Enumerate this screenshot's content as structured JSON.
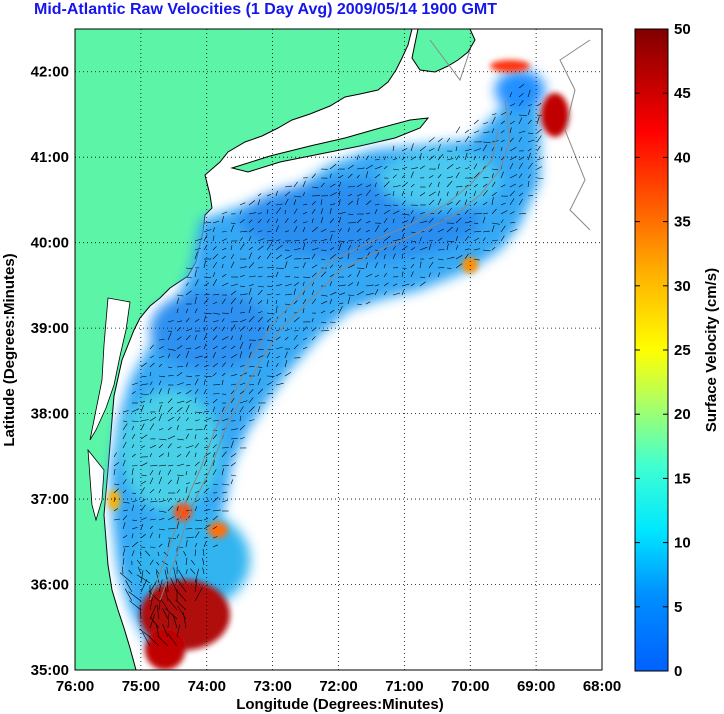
{
  "title": "Mid-Atlantic Raw Velocities (1 Day Avg) 2009/05/14 1900 GMT",
  "map": {
    "xlabel": "Longitude (Degrees:Minutes)",
    "ylabel": "Latitude (Degrees:Minutes)",
    "lon_ticks": [
      "76:00",
      "75:00",
      "74:00",
      "73:00",
      "72:00",
      "71:00",
      "70:00",
      "69:00",
      "68:00"
    ],
    "lat_ticks": [
      "42:00",
      "41:00",
      "40:00",
      "39:00",
      "38:00",
      "37:00",
      "36:00",
      "35:00"
    ],
    "lon_range": [
      -76,
      -68
    ],
    "lat_range": [
      35,
      42.5
    ],
    "land_color": "#5cf5a8",
    "grid": "dotted"
  },
  "colorbar": {
    "label": "Surface Velocity (cm/s)",
    "ticks": [
      "50",
      "45",
      "40",
      "35",
      "30",
      "25",
      "20",
      "15",
      "10",
      "5",
      "0"
    ],
    "range": [
      0,
      50
    ]
  }
}
